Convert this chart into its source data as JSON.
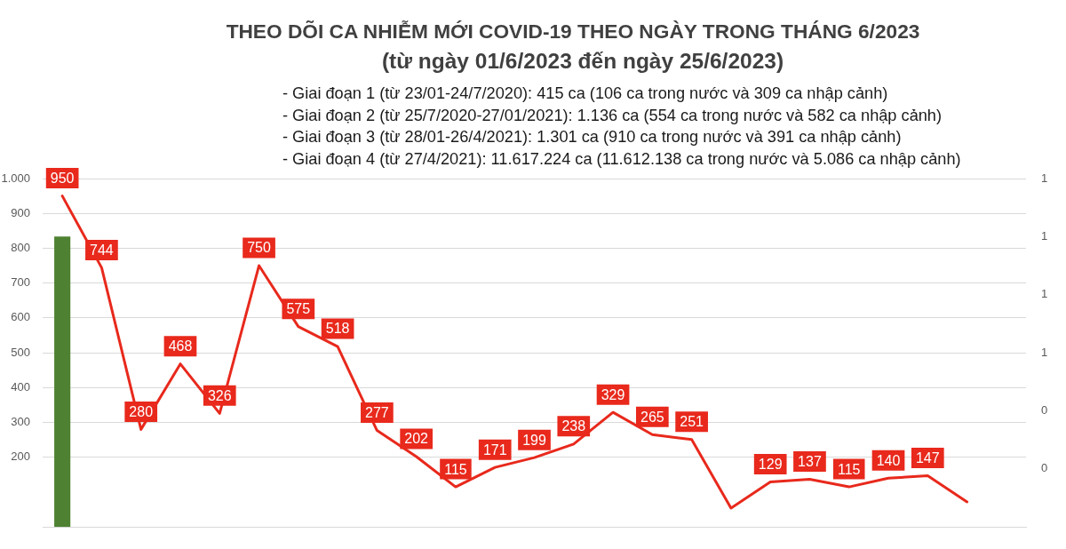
{
  "chart_data": {
    "type": "line",
    "title": "THEO DÕI CA NHIỄM MỚI COVID-19 THEO NGÀY TRONG THÁNG 6/2023",
    "subtitle": "(từ ngày 01/6/2023 đến ngày 25/6/2023)",
    "annotations": [
      "- Giai đoạn 1 (từ 23/01-24/7/2020): 415 ca (106 ca trong nước và 309 ca nhập cảnh)",
      "- Giai đoạn 2 (từ 25/7/2020-27/01/2021): 1.136 ca (554 ca trong nước và 582 ca nhập cảnh)",
      "- Giai đoạn 3 (từ 28/01-26/4/2021): 1.301 ca (910 ca trong nước và 391 ca nhập cảnh)",
      "- Giai đoạn 4 (từ 27/4/2021): 11.617.224 ca (11.612.138 ca trong nước và 5.086 ca nhập cảnh)"
    ],
    "categories": [
      null,
      null,
      null,
      null,
      null,
      null,
      null,
      null,
      null,
      null,
      null,
      null,
      null,
      null,
      null,
      null,
      null,
      null,
      null,
      null,
      null,
      null,
      null,
      null,
      null
    ],
    "series": [
      {
        "color": "#e8291c",
        "values": [
          950,
          744,
          280,
          468,
          326,
          750,
          575,
          518,
          277,
          202,
          115,
          171,
          199,
          238,
          329,
          265,
          251,
          54,
          129,
          137,
          115,
          140,
          147,
          72,
          null
        ],
        "value_labels": [
          "950",
          "744",
          "280",
          "468",
          "326",
          "750",
          "575",
          "518",
          "277",
          "202",
          "115",
          "171",
          "199",
          "238",
          "329",
          "265",
          "251",
          null,
          "129",
          "137",
          "115",
          "140",
          "147",
          null,
          null
        ]
      },
      {
        "type": "bar",
        "axis": "y2",
        "color": "#4e8232",
        "values": [
          1,
          0,
          0,
          0,
          0,
          0,
          0,
          0,
          0,
          0,
          0,
          0,
          0,
          0,
          0,
          0,
          0,
          0,
          0,
          0,
          0,
          0,
          0,
          0,
          0
        ]
      }
    ],
    "ylim": [
      0,
      1000
    ],
    "yticks": [
      200,
      300,
      400,
      500,
      600,
      700,
      800,
      900,
      {
        "value": 1000,
        "label": "1.000"
      }
    ],
    "y2lim": [
      0,
      1.2
    ],
    "y2ticks": [
      {
        "value": 0.2,
        "label": "0"
      },
      {
        "value": 0.4,
        "label": "0"
      },
      {
        "value": 0.6,
        "label": "1"
      },
      {
        "value": 0.8,
        "label": "1"
      },
      {
        "value": 1.0,
        "label": "1"
      },
      {
        "value": 1.2,
        "label": "1"
      }
    ],
    "grid": "y"
  }
}
